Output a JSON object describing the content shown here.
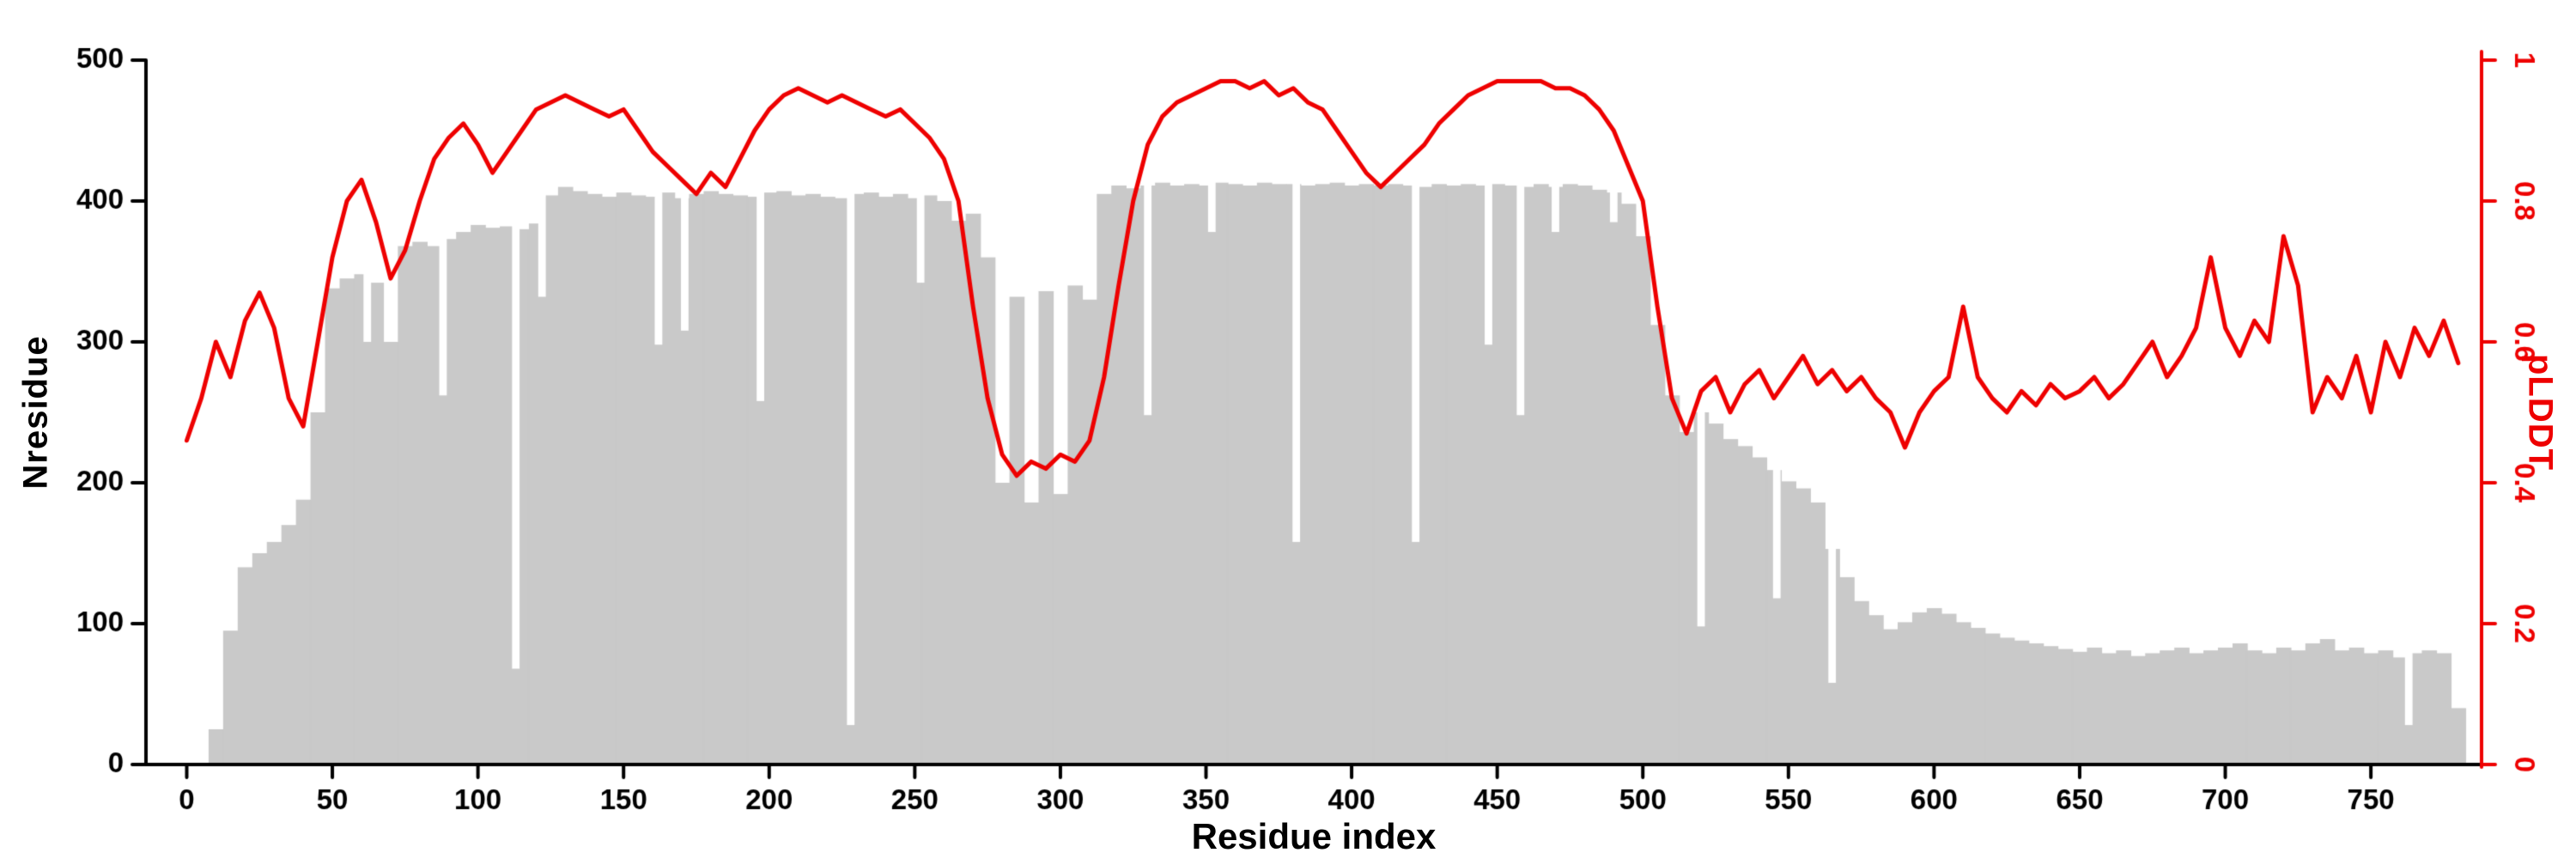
{
  "chart_data": {
    "type": "line",
    "title": "",
    "xlabel": "Residue index",
    "ylabel_left": "Nresidue",
    "ylabel_right": "pLDDT",
    "xlim": [
      -14,
      788
    ],
    "x_ticks": [
      0,
      50,
      100,
      150,
      200,
      250,
      300,
      350,
      400,
      450,
      500,
      550,
      600,
      650,
      700,
      750
    ],
    "left_ylim": [
      0,
      500
    ],
    "left_yticks": [
      0,
      100,
      200,
      300,
      400,
      500
    ],
    "right_ylim": [
      0,
      1
    ],
    "right_yticks": [
      0,
      0.2,
      0.4,
      0.6,
      0.8,
      1
    ],
    "right_ytick_labels": [
      "0",
      "0.2",
      "0.4",
      "0.6",
      "0.8",
      "1"
    ],
    "legend": "none",
    "grid": false,
    "colors": {
      "bars": "#c9c9c9",
      "line": "#ee0000",
      "axis": "#000000",
      "right_axis": "#ee0000",
      "background": "#ffffff"
    },
    "series": [
      {
        "name": "Nresidue",
        "render": "bar",
        "axis": "left",
        "x_start": 0,
        "x_step": 5,
        "values": [
          0,
          0,
          25,
          95,
          140,
          150,
          158,
          170,
          188,
          250,
          338,
          345,
          348,
          342,
          300,
          368,
          371,
          368,
          373,
          378,
          383,
          381,
          382,
          380,
          384,
          404,
          410,
          407,
          405,
          403,
          406,
          404,
          403,
          406,
          402,
          405,
          407,
          405,
          404,
          403,
          406,
          407,
          404,
          405,
          403,
          402,
          405,
          406,
          403,
          405,
          402,
          404,
          400,
          386,
          391,
          360,
          200,
          332,
          186,
          336,
          192,
          340,
          330,
          405,
          411,
          409,
          411,
          413,
          411,
          412,
          411,
          413,
          412,
          411,
          413,
          412,
          412,
          411,
          412,
          413,
          411,
          412,
          411,
          412,
          411,
          410,
          412,
          411,
          412,
          411,
          412,
          411,
          410,
          412,
          410,
          412,
          411,
          408,
          406,
          398,
          375,
          312,
          262,
          236,
          250,
          242,
          231,
          226,
          218,
          209,
          201,
          196,
          186,
          153,
          133,
          116,
          106,
          96,
          101,
          108,
          111,
          107,
          101,
          97,
          93,
          90,
          88,
          86,
          84,
          82,
          80,
          83,
          79,
          81,
          77,
          79,
          81,
          83,
          79,
          81,
          83,
          86,
          81,
          79,
          83,
          81,
          86,
          89,
          81,
          83,
          79,
          81,
          76,
          79,
          81,
          79,
          40
        ]
      },
      {
        "name": "pLDDT",
        "render": "line",
        "axis": "right",
        "x_start": 0,
        "x_step": 5,
        "values": [
          0.46,
          0.52,
          0.6,
          0.55,
          0.63,
          0.67,
          0.62,
          0.52,
          0.48,
          0.6,
          0.72,
          0.8,
          0.83,
          0.77,
          0.69,
          0.73,
          0.8,
          0.86,
          0.89,
          0.91,
          0.88,
          0.84,
          0.87,
          0.9,
          0.93,
          0.94,
          0.95,
          0.94,
          0.93,
          0.92,
          0.93,
          0.9,
          0.87,
          0.85,
          0.83,
          0.81,
          0.84,
          0.82,
          0.86,
          0.9,
          0.93,
          0.95,
          0.96,
          0.95,
          0.94,
          0.95,
          0.94,
          0.93,
          0.92,
          0.93,
          0.91,
          0.89,
          0.86,
          0.8,
          0.65,
          0.52,
          0.44,
          0.41,
          0.43,
          0.42,
          0.44,
          0.43,
          0.46,
          0.55,
          0.68,
          0.8,
          0.88,
          0.92,
          0.94,
          0.95,
          0.96,
          0.97,
          0.97,
          0.96,
          0.97,
          0.95,
          0.96,
          0.94,
          0.93,
          0.9,
          0.87,
          0.84,
          0.82,
          0.84,
          0.86,
          0.88,
          0.91,
          0.93,
          0.95,
          0.96,
          0.97,
          0.97,
          0.97,
          0.97,
          0.96,
          0.96,
          0.95,
          0.93,
          0.9,
          0.85,
          0.8,
          0.65,
          0.52,
          0.47,
          0.53,
          0.55,
          0.5,
          0.54,
          0.56,
          0.52,
          0.55,
          0.58,
          0.54,
          0.56,
          0.53,
          0.55,
          0.52,
          0.5,
          0.45,
          0.5,
          0.53,
          0.55,
          0.65,
          0.55,
          0.52,
          0.5,
          0.53,
          0.51,
          0.54,
          0.52,
          0.53,
          0.55,
          0.52,
          0.54,
          0.57,
          0.6,
          0.55,
          0.58,
          0.62,
          0.72,
          0.62,
          0.58,
          0.63,
          0.6,
          0.75,
          0.68,
          0.5,
          0.55,
          0.52,
          0.58,
          0.5,
          0.6,
          0.55,
          0.62,
          0.58,
          0.63,
          0.57
        ]
      }
    ],
    "bar_notches": [
      [
        62,
        300
      ],
      [
        88,
        262
      ],
      [
        113,
        68
      ],
      [
        122,
        332
      ],
      [
        162,
        298
      ],
      [
        171,
        308
      ],
      [
        197,
        258
      ],
      [
        228,
        28
      ],
      [
        252,
        342
      ],
      [
        330,
        248
      ],
      [
        352,
        378
      ],
      [
        381,
        158
      ],
      [
        422,
        158
      ],
      [
        447,
        298
      ],
      [
        458,
        248
      ],
      [
        470,
        378
      ],
      [
        490,
        385
      ],
      [
        520,
        98
      ],
      [
        546,
        118
      ],
      [
        565,
        58
      ],
      [
        763,
        28
      ]
    ]
  }
}
